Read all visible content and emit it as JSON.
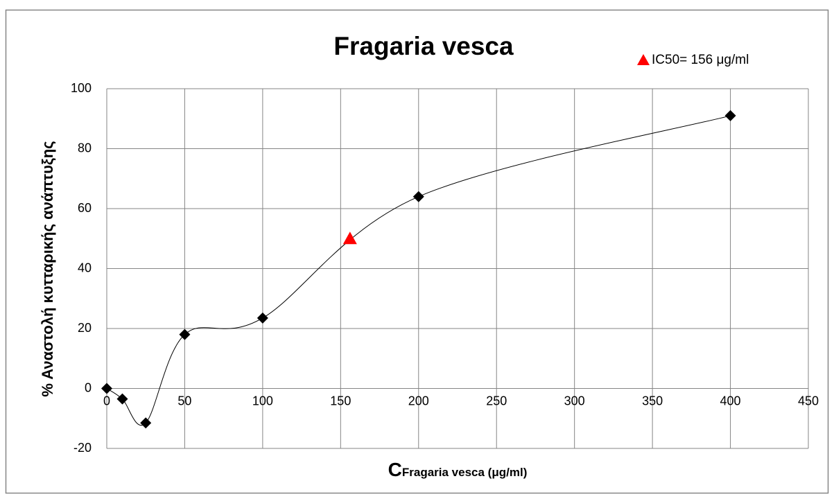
{
  "chart_data": {
    "type": "scatter",
    "title": "Fragaria vesca",
    "xlabel": "C",
    "xlabel_subscript": "Fragaria vesca (μg/ml)",
    "ylabel": "% Αναστολή κυτταρικής ανάπτυξης",
    "series": [
      {
        "color": "#000000",
        "marker": "diamond",
        "smooth": true,
        "x": [
          0,
          10,
          25,
          50,
          100,
          200,
          400
        ],
        "values": [
          0,
          -3.5,
          -11.5,
          18,
          23.5,
          64,
          91
        ]
      },
      {
        "name": "IC50= 156 μg/ml",
        "color": "#ff0000",
        "marker": "triangle",
        "smooth": false,
        "x": [
          156
        ],
        "values": [
          50
        ]
      }
    ],
    "xlim": [
      0,
      450
    ],
    "xticks": [
      0,
      50,
      100,
      150,
      200,
      250,
      300,
      350,
      400,
      450
    ],
    "ylim": [
      -20,
      100
    ],
    "yticks": [
      -20,
      0,
      20,
      40,
      60,
      80,
      100
    ],
    "grid": true,
    "legend": "upper right"
  }
}
